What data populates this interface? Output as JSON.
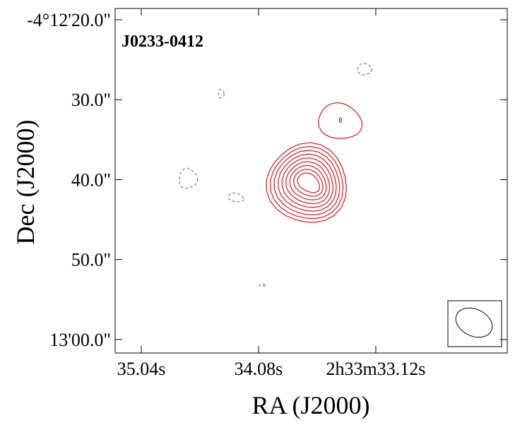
{
  "chart_data": {
    "type": "contour",
    "title": "J0233-0412",
    "x_label": "RA (J2000)",
    "y_label": "Dec (J2000)",
    "xlim": [
      35.254,
      32.044
    ],
    "ylim": [
      61.68,
      18.59
    ],
    "xticks": [
      {
        "value": 35.04,
        "label": "35.04s"
      },
      {
        "value": 34.08,
        "label": "34.08s"
      },
      {
        "value": 33.12,
        "label": "2h33m33.12s"
      }
    ],
    "yticks": [
      {
        "value": 20,
        "label": "-4°12'20.0\""
      },
      {
        "value": 30,
        "label": "30.0\""
      },
      {
        "value": 40,
        "label": "40.0\""
      },
      {
        "value": 50,
        "label": "50.0\""
      },
      {
        "value": 60,
        "label": "13'00.0\""
      }
    ]
  }
}
